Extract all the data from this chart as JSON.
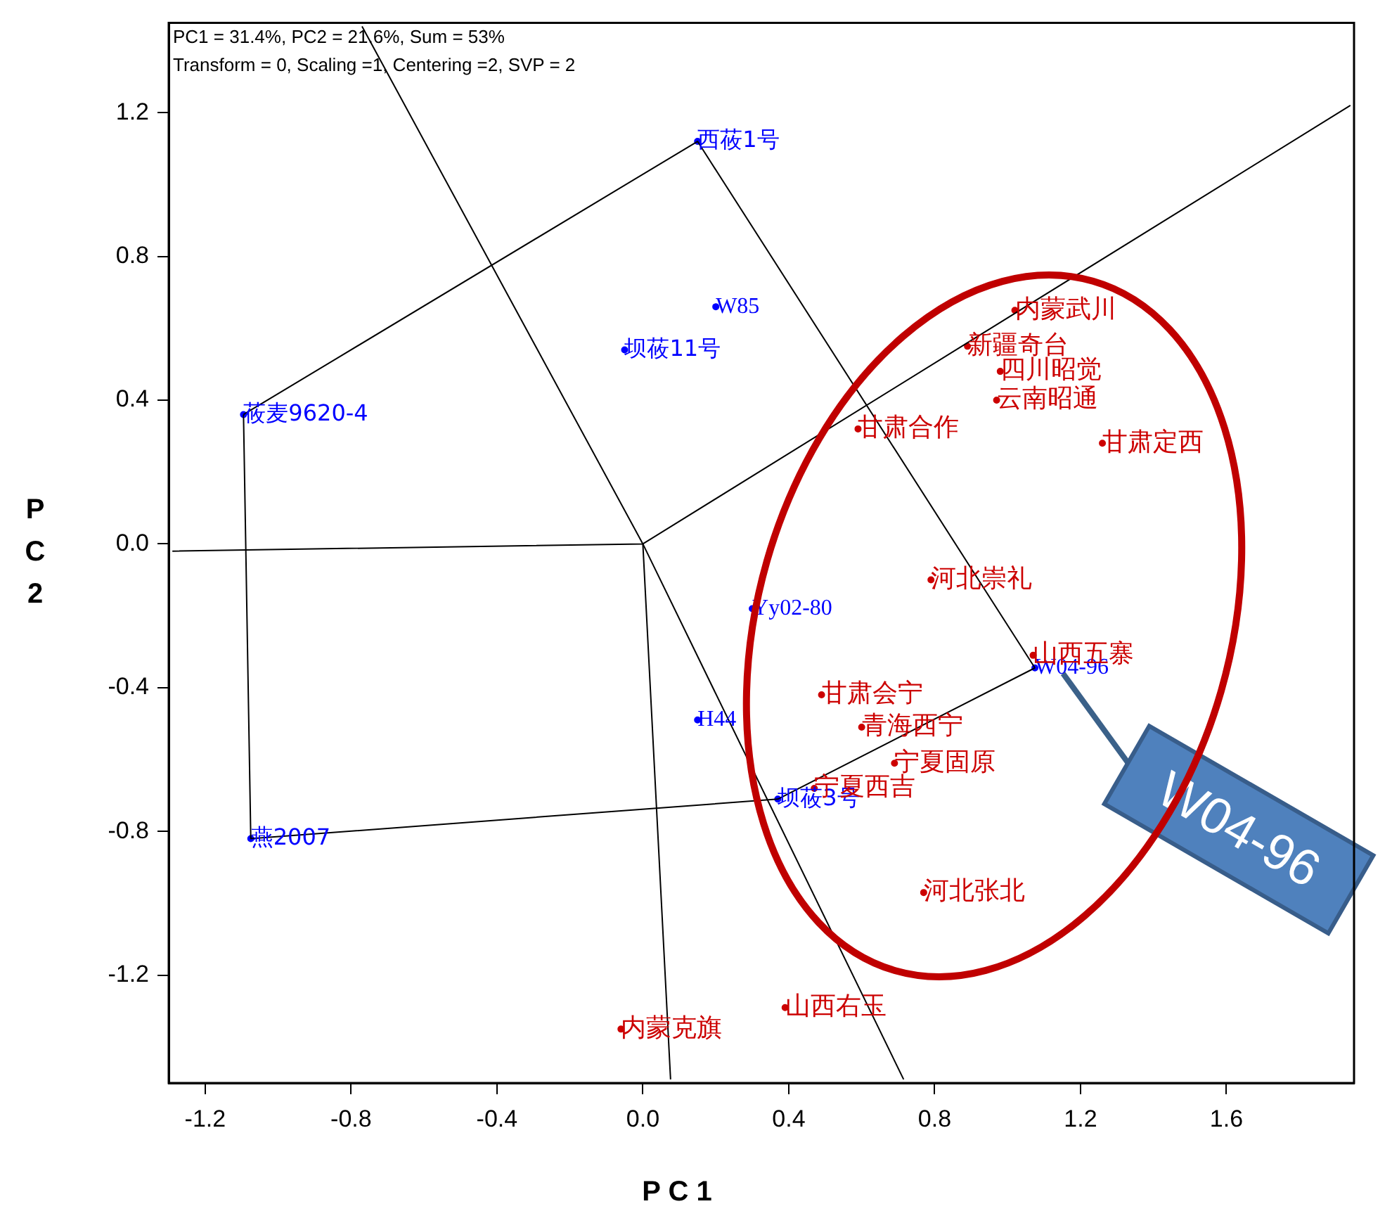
{
  "chart_data": {
    "type": "scatter",
    "xlabel": "P C 1",
    "ylabel": "PC2",
    "xlim": [
      -1.3,
      1.95
    ],
    "ylim": [
      -1.5,
      1.45
    ],
    "xticks": [
      {
        "value": -1.2,
        "label": "-1.2"
      },
      {
        "value": -0.8,
        "label": "-0.8"
      },
      {
        "value": -0.4,
        "label": "-0.4"
      },
      {
        "value": 0,
        "label": "0.0"
      },
      {
        "value": 0.4,
        "label": "0.4"
      },
      {
        "value": 0.8,
        "label": "0.8"
      },
      {
        "value": 1.2,
        "label": "1.2"
      },
      {
        "value": 1.6,
        "label": "1.6"
      }
    ],
    "yticks": [
      {
        "value": -1.2,
        "label": "-1.2"
      },
      {
        "value": -0.8,
        "label": "-0.8"
      },
      {
        "value": -0.4,
        "label": "-0.4"
      },
      {
        "value": 0,
        "label": "0.0"
      },
      {
        "value": 0.4,
        "label": "0.4"
      },
      {
        "value": 0.8,
        "label": "0.8"
      },
      {
        "value": 1.2,
        "label": "1.2"
      }
    ],
    "grid": false,
    "legend": false,
    "marker": "circle",
    "series": [
      {
        "type": "line",
        "marker": "none",
        "color": "#000000",
        "x": [
          -1.095,
          0.15,
          1.075
        ],
        "values": [
          0.36,
          1.12,
          -0.345
        ]
      },
      {
        "type": "line",
        "marker": "none",
        "color": "#000000",
        "x": [
          -1.095,
          -1.075,
          0.37,
          1.075
        ],
        "values": [
          0.36,
          -0.82,
          -0.71,
          -0.345
        ]
      },
      {
        "type": "line",
        "marker": "none",
        "color": "#000000",
        "x": [
          -1.29,
          0,
          1.94
        ],
        "values": [
          -0.02,
          0,
          1.22
        ]
      },
      {
        "type": "line",
        "marker": "none",
        "color": "#000000",
        "x": [
          -0.77,
          0,
          0.076
        ],
        "values": [
          1.44,
          0,
          -1.49
        ]
      },
      {
        "type": "line",
        "marker": "none",
        "color": "#000000",
        "x": [
          0,
          0.715
        ],
        "values": [
          0,
          -1.49
        ]
      },
      {
        "type": "scatter",
        "color": "#0000ff",
        "x": [
          0.15,
          -1.095,
          -1.075,
          0.37,
          1.075,
          0.2,
          -0.05,
          0.3,
          0.15
        ],
        "values": [
          1.12,
          0.36,
          -0.82,
          -0.71,
          -0.345,
          0.66,
          0.54,
          -0.18,
          -0.49
        ],
        "value_labels": [
          "西莜1号",
          "莜麦9620-4",
          "燕2007",
          "坝莜3号",
          "W04-96",
          "W85",
          "坝莜11号",
          "Yy02-80",
          "H44"
        ]
      },
      {
        "type": "scatter",
        "color": "#cc0000",
        "x": [
          0.59,
          1.02,
          0.89,
          0.98,
          0.97,
          1.26,
          0.79,
          1.07,
          0.49,
          0.6,
          0.69,
          0.47,
          0.77,
          0.39,
          -0.06
        ],
        "values": [
          0.32,
          0.65,
          0.55,
          0.48,
          0.4,
          0.28,
          -0.1,
          -0.31,
          -0.42,
          -0.51,
          -0.61,
          -0.68,
          -0.97,
          -1.29,
          -1.35
        ],
        "value_labels": [
          "甘肃合作",
          "内蒙武川",
          "新疆奇台",
          "四川昭觉",
          "云南昭通",
          "甘肃定西",
          "河北崇礼",
          "山西五寨",
          "甘肃会宁",
          "青海西宁",
          "宁夏固原",
          "宁夏西吉",
          "河北张北",
          "山西右玉",
          "内蒙克旗"
        ]
      }
    ],
    "annotations": [
      "PC1 = 31.4%, PC2 = 21.6%, Sum = 53%",
      "Transform = 0, Scaling =1, Centering =2, SVP = 2",
      {
        "text": "W04-96",
        "x": 1.075,
        "y": -0.345
      }
    ]
  }
}
